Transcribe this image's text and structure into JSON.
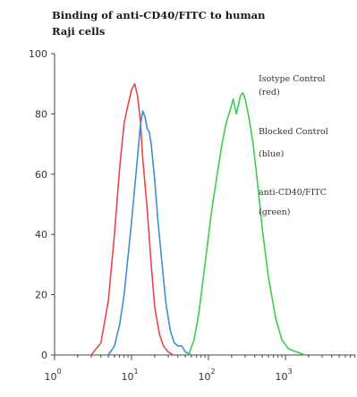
{
  "chart_data": {
    "type": "line",
    "title_lines": [
      "Binding of anti-CD40/FITC to human",
      "Raji cells"
    ],
    "xlabel": "",
    "ylabel": "",
    "x_scale": "log",
    "xlim": [
      1,
      8000
    ],
    "ylim": [
      0,
      100
    ],
    "x_ticks": [
      {
        "value": 1,
        "base": "10",
        "exp": "0"
      },
      {
        "value": 10,
        "base": "10",
        "exp": "1"
      },
      {
        "value": 100,
        "base": "10",
        "exp": "2"
      },
      {
        "value": 1000,
        "base": "10",
        "exp": "3"
      }
    ],
    "y_ticks": [
      {
        "value": 0,
        "label": "0"
      },
      {
        "value": 20,
        "label": "20"
      },
      {
        "value": 40,
        "label": "40"
      },
      {
        "value": 60,
        "label": "60"
      },
      {
        "value": 80,
        "label": "80"
      },
      {
        "value": 100,
        "label": "100"
      }
    ],
    "grid": false,
    "legend_placement": "right",
    "legend": [
      {
        "line1": "Isotype Control",
        "line2": "(red)"
      },
      {
        "line1": "Blocked Control",
        "line2": "(blue)"
      },
      {
        "line1": "anti-CD40/FITC",
        "line2": "(green)"
      }
    ],
    "series": [
      {
        "color": "#e8474a",
        "x": [
          3,
          4,
          5,
          6,
          7,
          8,
          9,
          10,
          11,
          12,
          13,
          14,
          16,
          18,
          20,
          23,
          26,
          30,
          35
        ],
        "y": [
          0,
          4,
          18,
          40,
          62,
          77,
          83,
          88,
          90,
          86,
          78,
          65,
          48,
          30,
          16,
          7,
          3,
          1,
          0
        ]
      },
      {
        "color": "#3d8ed6",
        "x": [
          5,
          6,
          7,
          8,
          10,
          12,
          13,
          14,
          15,
          16,
          17,
          18,
          20,
          22,
          25,
          28,
          32,
          36,
          40,
          45,
          50,
          60
        ],
        "y": [
          0,
          3,
          10,
          20,
          44,
          66,
          76,
          81,
          79,
          75,
          74,
          70,
          58,
          45,
          30,
          17,
          8,
          4,
          3,
          3,
          1,
          0
        ]
      },
      {
        "color": "#3dcc52",
        "x": [
          55,
          65,
          75,
          90,
          110,
          130,
          150,
          170,
          190,
          210,
          230,
          260,
          280,
          300,
          340,
          380,
          430,
          500,
          600,
          750,
          900,
          1100,
          1400,
          1800
        ],
        "y": [
          0,
          5,
          14,
          30,
          48,
          60,
          70,
          77,
          81,
          85,
          80,
          86,
          87,
          85,
          78,
          70,
          58,
          42,
          26,
          12,
          5,
          2,
          1,
          0
        ]
      }
    ]
  }
}
